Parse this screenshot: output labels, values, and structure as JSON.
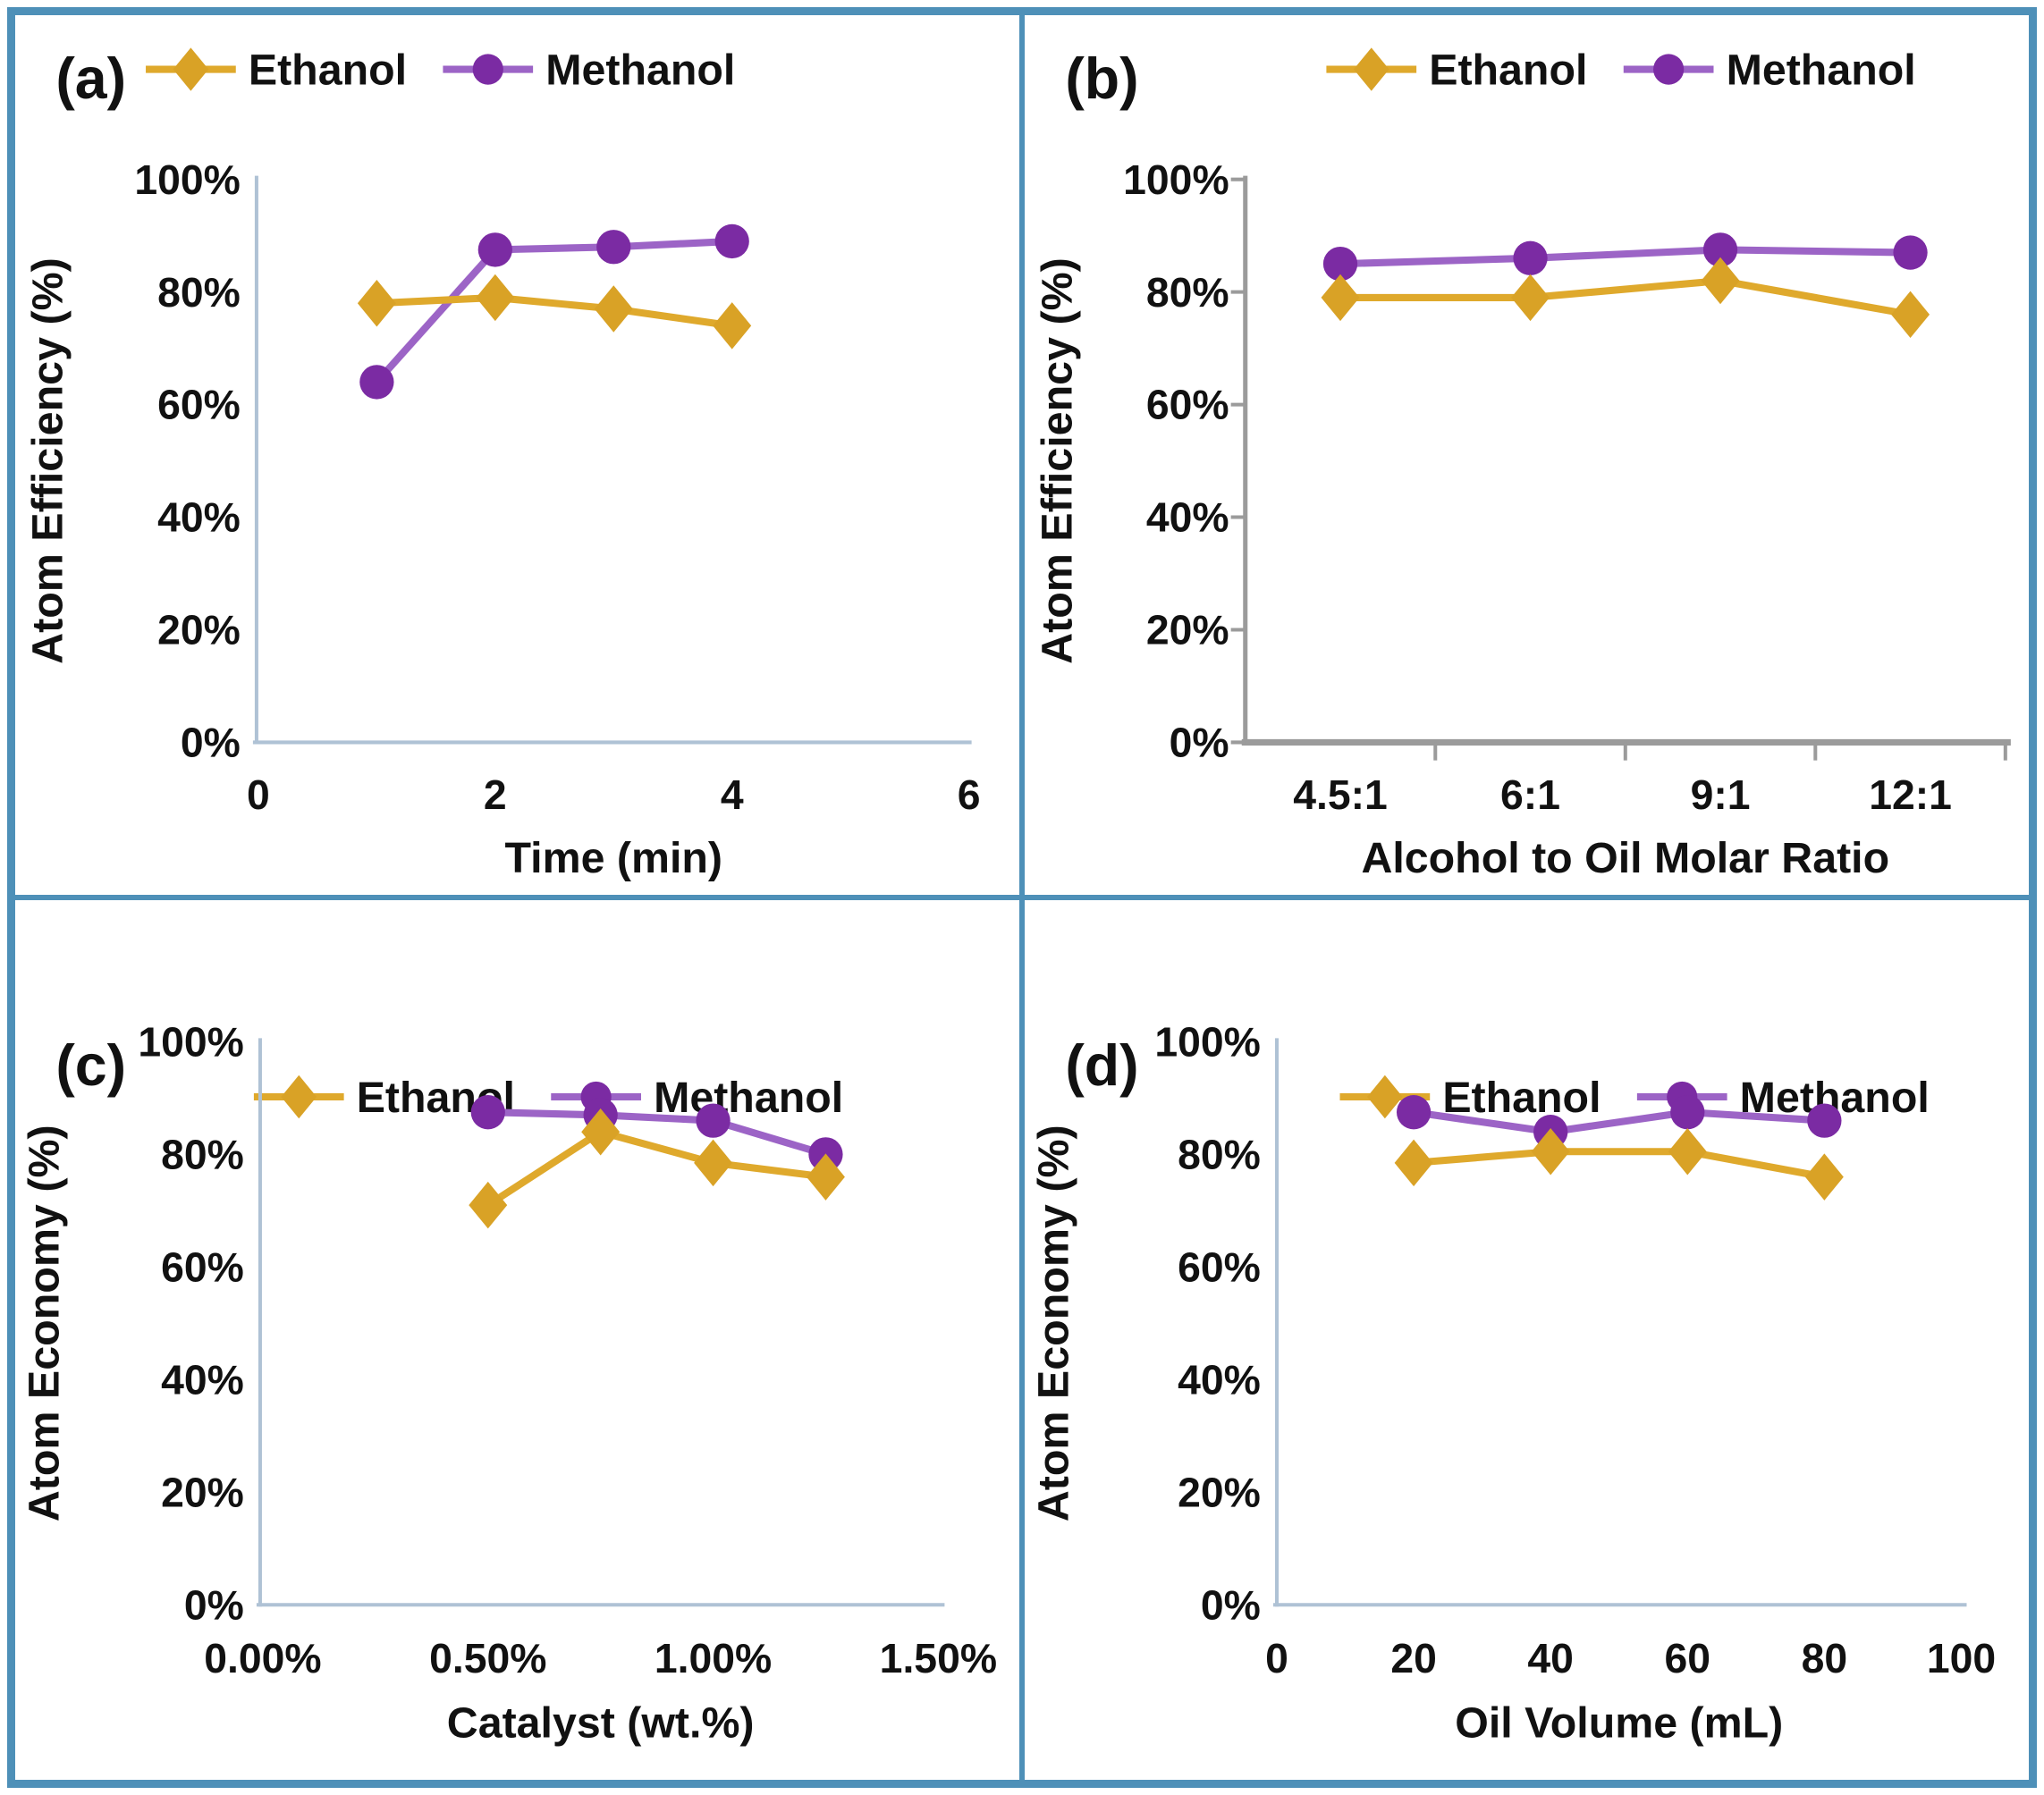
{
  "figure": {
    "border_color": "#4E90B8",
    "background": "#FFFFFF",
    "text_color": "#111111"
  },
  "colors": {
    "ethanol_marker": "#D9A226",
    "ethanol_line": "#DFA92C",
    "methanol_marker": "#7B2BA3",
    "methanol_line": "#9C64C6",
    "axis_light": "#AFC2D5",
    "axis_gray": "#9B9B9B"
  },
  "legend": {
    "ethanol_label": "Ethanol",
    "methanol_label": "Methanol"
  },
  "chart_data": [
    {
      "id": "a",
      "panel_label": "(a)",
      "type": "line",
      "xlabel": "Time (min)",
      "ylabel": "Atom Efficiency (%)",
      "x_axis": {
        "kind": "numeric",
        "min": 0,
        "max": 6,
        "ticks": [
          0,
          2,
          4,
          6
        ],
        "tick_labels": [
          "0",
          "2",
          "4",
          "6"
        ]
      },
      "y_axis": {
        "min": 0,
        "max": 100,
        "tick_values": [
          0,
          20,
          40,
          60,
          80,
          100
        ],
        "tick_labels": [
          "0%",
          "20%",
          "40%",
          "60%",
          "80%",
          "100%"
        ]
      },
      "x": [
        1,
        2,
        3,
        4
      ],
      "series": [
        {
          "name": "Ethanol",
          "marker": "diamond",
          "values": [
            78,
            79,
            77,
            74
          ]
        },
        {
          "name": "Methanol",
          "marker": "circle",
          "values": [
            64,
            87.5,
            88,
            89
          ]
        }
      ],
      "grid": "off",
      "legend_position": "top"
    },
    {
      "id": "b",
      "panel_label": "(b)",
      "type": "line",
      "xlabel": "Alcohol to Oil Molar Ratio",
      "ylabel": "Atom Efficiency (%)",
      "x_axis": {
        "kind": "category",
        "categories": [
          "4.5:1",
          "6:1",
          "9:1",
          "12:1"
        ]
      },
      "y_axis": {
        "min": 0,
        "max": 100,
        "tick_values": [
          0,
          20,
          40,
          60,
          80,
          100
        ],
        "tick_labels": [
          "0%",
          "20%",
          "40%",
          "60%",
          "80%",
          "100%"
        ]
      },
      "series": [
        {
          "name": "Ethanol",
          "marker": "diamond",
          "values": [
            79,
            79,
            82,
            76
          ]
        },
        {
          "name": "Methanol",
          "marker": "circle",
          "values": [
            85,
            86,
            87.5,
            87
          ]
        }
      ],
      "grid": "off",
      "legend_position": "top"
    },
    {
      "id": "c",
      "panel_label": "(c)",
      "type": "line",
      "xlabel": "Catalyst (wt.%)",
      "ylabel": "Atom Economy (%)",
      "x_axis": {
        "kind": "numeric",
        "min": 0,
        "max": 1.5,
        "ticks": [
          0,
          0.5,
          1.0,
          1.5
        ],
        "tick_labels": [
          "0.00%",
          "0.50%",
          "1.00%",
          "1.50%"
        ]
      },
      "y_axis": {
        "min": 0,
        "max": 100,
        "tick_values": [
          0,
          20,
          40,
          60,
          80,
          100
        ],
        "tick_labels": [
          "0%",
          "20%",
          "40%",
          "60%",
          "80%",
          "100%"
        ]
      },
      "x": [
        0.5,
        0.75,
        1.0,
        1.25
      ],
      "series": [
        {
          "name": "Ethanol",
          "marker": "diamond",
          "values": [
            71,
            84,
            78.5,
            76
          ]
        },
        {
          "name": "Methanol",
          "marker": "circle",
          "values": [
            87.5,
            87,
            86,
            80
          ]
        }
      ],
      "grid": "off",
      "legend_position": "top"
    },
    {
      "id": "d",
      "panel_label": "(d)",
      "type": "line",
      "xlabel": "Oil Volume (mL)",
      "ylabel": "Atom Economy (%)",
      "x_axis": {
        "kind": "numeric",
        "min": 0,
        "max": 100,
        "ticks": [
          0,
          20,
          40,
          60,
          80,
          100
        ],
        "tick_labels": [
          "0",
          "20",
          "40",
          "60",
          "80",
          "100"
        ]
      },
      "y_axis": {
        "min": 0,
        "max": 100,
        "tick_values": [
          0,
          20,
          40,
          60,
          80,
          100
        ],
        "tick_labels": [
          "0%",
          "20%",
          "40%",
          "60%",
          "80%",
          "100%"
        ]
      },
      "x": [
        20,
        40,
        60,
        80
      ],
      "series": [
        {
          "name": "Ethanol",
          "marker": "diamond",
          "values": [
            78.5,
            80.5,
            80.5,
            76
          ]
        },
        {
          "name": "Methanol",
          "marker": "circle",
          "values": [
            87.5,
            84,
            87.5,
            86
          ]
        }
      ],
      "grid": "off",
      "legend_position": "top"
    }
  ]
}
